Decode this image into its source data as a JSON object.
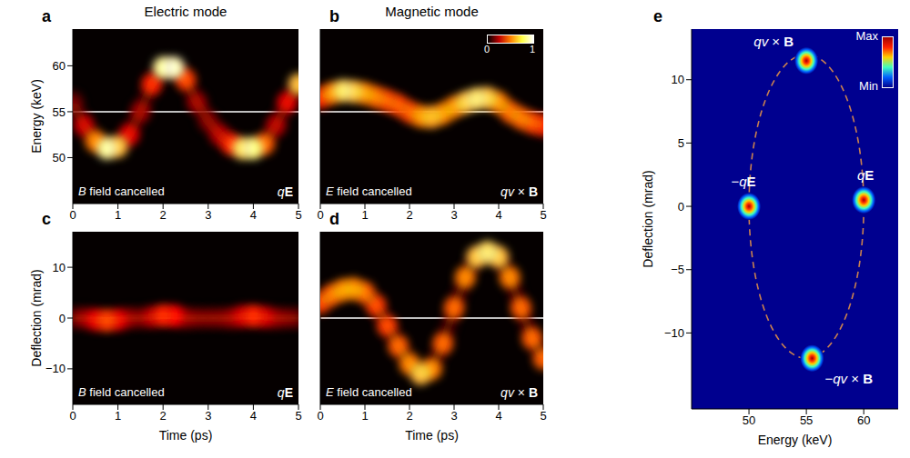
{
  "chart_data": [
    {
      "panel": "a",
      "type": "heatmap",
      "title": "Electric mode",
      "y_label": "Energy (keV)",
      "x": [
        0,
        0.25,
        0.5,
        0.75,
        1,
        1.25,
        1.5,
        1.75,
        2,
        2.25,
        2.5,
        2.75,
        3,
        3.25,
        3.5,
        3.75,
        4,
        4.25,
        4.5,
        4.75,
        5
      ],
      "values": [
        56,
        53.5,
        51.8,
        51,
        51.2,
        52.5,
        55,
        58,
        59.8,
        59.8,
        58.5,
        56,
        54,
        52.5,
        51.5,
        51,
        51,
        51.5,
        53.5,
        56,
        58
      ],
      "intensity": [
        0.15,
        0.3,
        0.6,
        0.85,
        0.7,
        0.35,
        0.2,
        0.45,
        0.85,
        0.9,
        0.5,
        0.2,
        0.15,
        0.25,
        0.45,
        0.75,
        0.8,
        0.55,
        0.25,
        0.35,
        0.7
      ],
      "reference_line": 55,
      "annotations": [
        "B field cancelled",
        "qE"
      ],
      "xlim": [
        0,
        5
      ],
      "xticks": [
        0,
        1,
        2,
        3,
        4,
        5
      ],
      "ylim": [
        45,
        64
      ],
      "yticks": [
        50,
        55,
        60
      ]
    },
    {
      "panel": "b",
      "type": "heatmap",
      "title": "Magnetic mode",
      "x": [
        0,
        0.25,
        0.5,
        0.75,
        1,
        1.25,
        1.5,
        1.75,
        2,
        2.25,
        2.5,
        2.75,
        3,
        3.25,
        3.5,
        3.75,
        4,
        4.25,
        4.5,
        4.75,
        5
      ],
      "values": [
        56.5,
        57,
        57.3,
        57.2,
        57,
        56.6,
        56.2,
        55.7,
        55,
        54.5,
        54.4,
        54.8,
        55.5,
        56,
        56.4,
        56.5,
        56,
        55,
        54.3,
        53.8,
        53.5
      ],
      "intensity": [
        0.45,
        0.6,
        0.75,
        0.7,
        0.6,
        0.55,
        0.5,
        0.5,
        0.5,
        0.6,
        0.65,
        0.6,
        0.6,
        0.7,
        0.75,
        0.7,
        0.6,
        0.55,
        0.55,
        0.5,
        0.45
      ],
      "reference_line": 55,
      "annotations": [
        "E field cancelled",
        "qv × B"
      ],
      "colorbar": {
        "range": [
          0,
          1
        ],
        "ticks": [
          0,
          1
        ]
      },
      "xlim": [
        0,
        5
      ],
      "xticks": [
        0,
        1,
        2,
        3,
        4,
        5
      ],
      "ylim": [
        45,
        64
      ],
      "yticks": [
        50,
        55,
        60
      ],
      "tick_labels": "x"
    },
    {
      "panel": "c",
      "type": "heatmap",
      "y_label": "Deflection (mrad)",
      "x_label": "Time (ps)",
      "x": [
        0,
        0.25,
        0.5,
        0.75,
        1,
        1.25,
        1.5,
        1.75,
        2,
        2.25,
        2.5,
        2.75,
        3,
        3.25,
        3.5,
        3.75,
        4,
        4.25,
        4.5,
        4.75,
        5
      ],
      "values": [
        0,
        0,
        -0.3,
        -0.5,
        -0.3,
        0,
        0,
        0.2,
        0.5,
        0.4,
        0,
        0,
        0,
        0,
        0,
        0.3,
        0.4,
        0.2,
        0,
        0,
        0
      ],
      "intensity": [
        0.1,
        0.15,
        0.35,
        0.5,
        0.35,
        0.15,
        0.1,
        0.25,
        0.45,
        0.4,
        0.15,
        0.1,
        0.1,
        0.1,
        0.15,
        0.3,
        0.45,
        0.3,
        0.15,
        0.1,
        0.1
      ],
      "reference_line": 0,
      "annotations": [
        "B field cancelled",
        "qE"
      ],
      "xlim": [
        0,
        5
      ],
      "xticks": [
        0,
        1,
        2,
        3,
        4,
        5
      ],
      "ylim": [
        -17,
        17
      ],
      "yticks": [
        {
          "value": -10,
          "label": "−10"
        },
        0,
        10
      ]
    },
    {
      "panel": "d",
      "type": "heatmap",
      "x_label": "Time (ps)",
      "x": [
        0,
        0.25,
        0.5,
        0.75,
        1,
        1.25,
        1.5,
        1.75,
        2,
        2.25,
        2.5,
        2.75,
        3,
        3.25,
        3.5,
        3.75,
        4,
        4.25,
        4.5,
        4.75,
        5
      ],
      "values": [
        3,
        4.5,
        5.5,
        5.8,
        5,
        2.5,
        -1.5,
        -5.5,
        -9,
        -11,
        -10,
        -5,
        2,
        8,
        12,
        13,
        12,
        8,
        2,
        -4,
        -8
      ],
      "intensity": [
        0.5,
        0.55,
        0.6,
        0.6,
        0.55,
        0.5,
        0.5,
        0.55,
        0.6,
        0.7,
        0.6,
        0.55,
        0.55,
        0.6,
        0.7,
        0.75,
        0.7,
        0.6,
        0.55,
        0.55,
        0.55
      ],
      "reference_line": 0,
      "annotations": [
        "E field cancelled",
        "qv × B"
      ],
      "xlim": [
        0,
        5
      ],
      "xticks": [
        0,
        1,
        2,
        3,
        4,
        5
      ],
      "ylim": [
        -17,
        17
      ],
      "yticks": [
        {
          "value": -10,
          "label": "−10"
        },
        0,
        10
      ],
      "tick_labels": "x"
    },
    {
      "panel": "e",
      "type": "scatter",
      "x_label": "Energy (keV)",
      "y_label": "Deflection (mrad)",
      "x": [
        55,
        50,
        60,
        55.5
      ],
      "values": [
        11.5,
        0,
        0.5,
        -12
      ],
      "labels": [
        "qv × B",
        "−qE",
        "qE",
        "−qv × B"
      ],
      "ellipse": {
        "x": 55,
        "y": 0,
        "x_radius": 5,
        "y_radius": 12
      },
      "colorbar": {
        "range": [
          0,
          1
        ],
        "ticks": [
          {
            "value": 1,
            "label": "Max"
          },
          {
            "value": 0,
            "label": "Min"
          }
        ]
      },
      "xlim": [
        45,
        63
      ],
      "xticks": [
        50,
        55,
        60
      ],
      "ylim": [
        -16,
        14
      ],
      "yticks": [
        {
          "value": -10,
          "label": "−10"
        },
        {
          "value": -5,
          "label": "−5"
        },
        0,
        5,
        10
      ]
    }
  ]
}
